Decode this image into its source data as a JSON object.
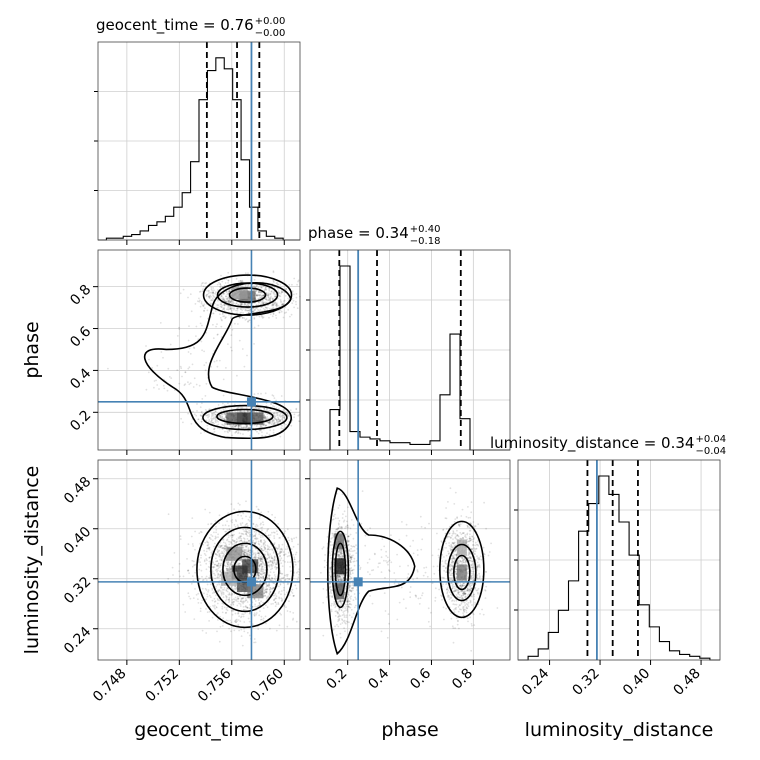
{
  "chart_data": {
    "type": "corner",
    "parameters": [
      "geocent_time",
      "phase",
      "luminosity_distance"
    ],
    "truths": {
      "geocent_time": 0.7575,
      "phase": 0.25,
      "luminosity_distance": 0.315
    },
    "titles": [
      {
        "param": "geocent_time",
        "text": "geocent_time = 0.76",
        "sup": "+0.00",
        "sub": "−0.00"
      },
      {
        "param": "phase",
        "text": "phase = 0.34",
        "sup": "+0.40",
        "sub": "−0.18"
      },
      {
        "param": "luminosity_distance",
        "text": "luminosity_distance = 0.34",
        "sup": "+0.04",
        "sub": "−0.04"
      }
    ],
    "axis_labels": {
      "x": [
        "geocent_time",
        "phase",
        "luminosity_distance"
      ],
      "y": [
        "phase",
        "luminosity_distance"
      ]
    },
    "ranges": {
      "geocent_time": [
        0.7458,
        0.7612
      ],
      "phase": [
        0.02,
        0.975
      ],
      "luminosity_distance": [
        0.19,
        0.51
      ]
    },
    "ticks": {
      "geocent_time": [
        0.748,
        0.752,
        0.756,
        0.76
      ],
      "phase": [
        0.2,
        0.4,
        0.6,
        0.8
      ],
      "luminosity_distance": [
        0.24,
        0.32,
        0.4,
        0.48
      ]
    },
    "tick_labels": {
      "geocent_time": [
        "0.748",
        "0.752",
        "0.756",
        "0.760"
      ],
      "phase": [
        "0.2",
        "0.4",
        "0.6",
        "0.8"
      ],
      "luminosity_distance": [
        "0.24",
        "0.32",
        "0.40",
        "0.48"
      ]
    },
    "quantiles": {
      "geocent_time": [
        0.7541,
        0.7564,
        0.7581
      ],
      "phase": [
        0.16,
        0.34,
        0.74
      ],
      "luminosity_distance": [
        0.3,
        0.34,
        0.38
      ]
    },
    "histograms": {
      "geocent_time": [
        0.0,
        0.01,
        0.01,
        0.02,
        0.03,
        0.05,
        0.08,
        0.1,
        0.13,
        0.18,
        0.26,
        0.43,
        0.77,
        0.93,
        1.0,
        0.94,
        0.77,
        0.44,
        0.18,
        0.05,
        0.02,
        0.01,
        0.0,
        0.0
      ],
      "phase": [
        0.0,
        0.0,
        0.22,
        1.0,
        0.1,
        0.07,
        0.06,
        0.05,
        0.04,
        0.04,
        0.03,
        0.03,
        0.05,
        0.3,
        0.63,
        0.17,
        0.0,
        0.0,
        0.0,
        0.0
      ],
      "luminosity_distance": [
        0.0,
        0.02,
        0.06,
        0.15,
        0.27,
        0.43,
        0.7,
        0.85,
        1.0,
        0.9,
        0.75,
        0.57,
        0.3,
        0.18,
        0.1,
        0.05,
        0.03,
        0.02,
        0.01,
        0.0
      ]
    },
    "grid": true
  }
}
